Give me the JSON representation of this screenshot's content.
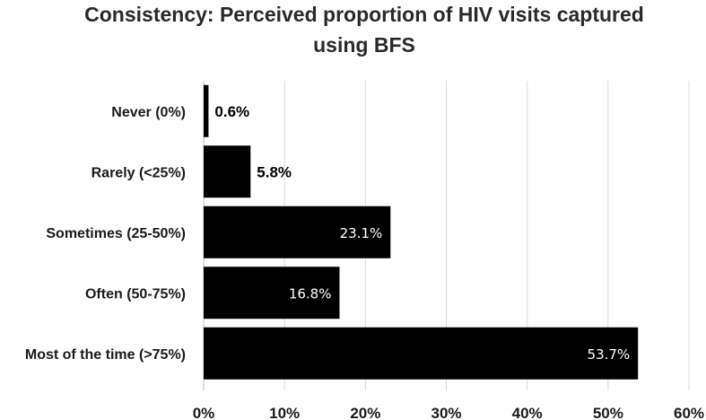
{
  "chart_data": {
    "type": "bar",
    "orientation": "horizontal",
    "title_lines": [
      "Consistency: Perceived proportion of HIV visits captured",
      "using BFS"
    ],
    "categories": [
      "Never (0%)",
      "Rarely (<25%)",
      "Sometimes (25-50%)",
      "Often (50-75%)",
      "Most of the time (>75%)"
    ],
    "values": [
      0.6,
      5.8,
      23.1,
      16.8,
      53.7
    ],
    "value_labels": [
      "0.6%",
      "5.8%",
      "23.1%",
      "16.8%",
      "53.7%"
    ],
    "xlim": [
      0,
      60
    ],
    "xticks": [
      0,
      10,
      20,
      30,
      40,
      50,
      60
    ],
    "xtick_labels": [
      "0%",
      "10%",
      "20%",
      "30%",
      "40%",
      "50%",
      "60%"
    ],
    "xlabel": "",
    "ylabel": "",
    "grid": "vertical",
    "bar_color": "#000000",
    "grid_color": "#d9d9d9"
  }
}
